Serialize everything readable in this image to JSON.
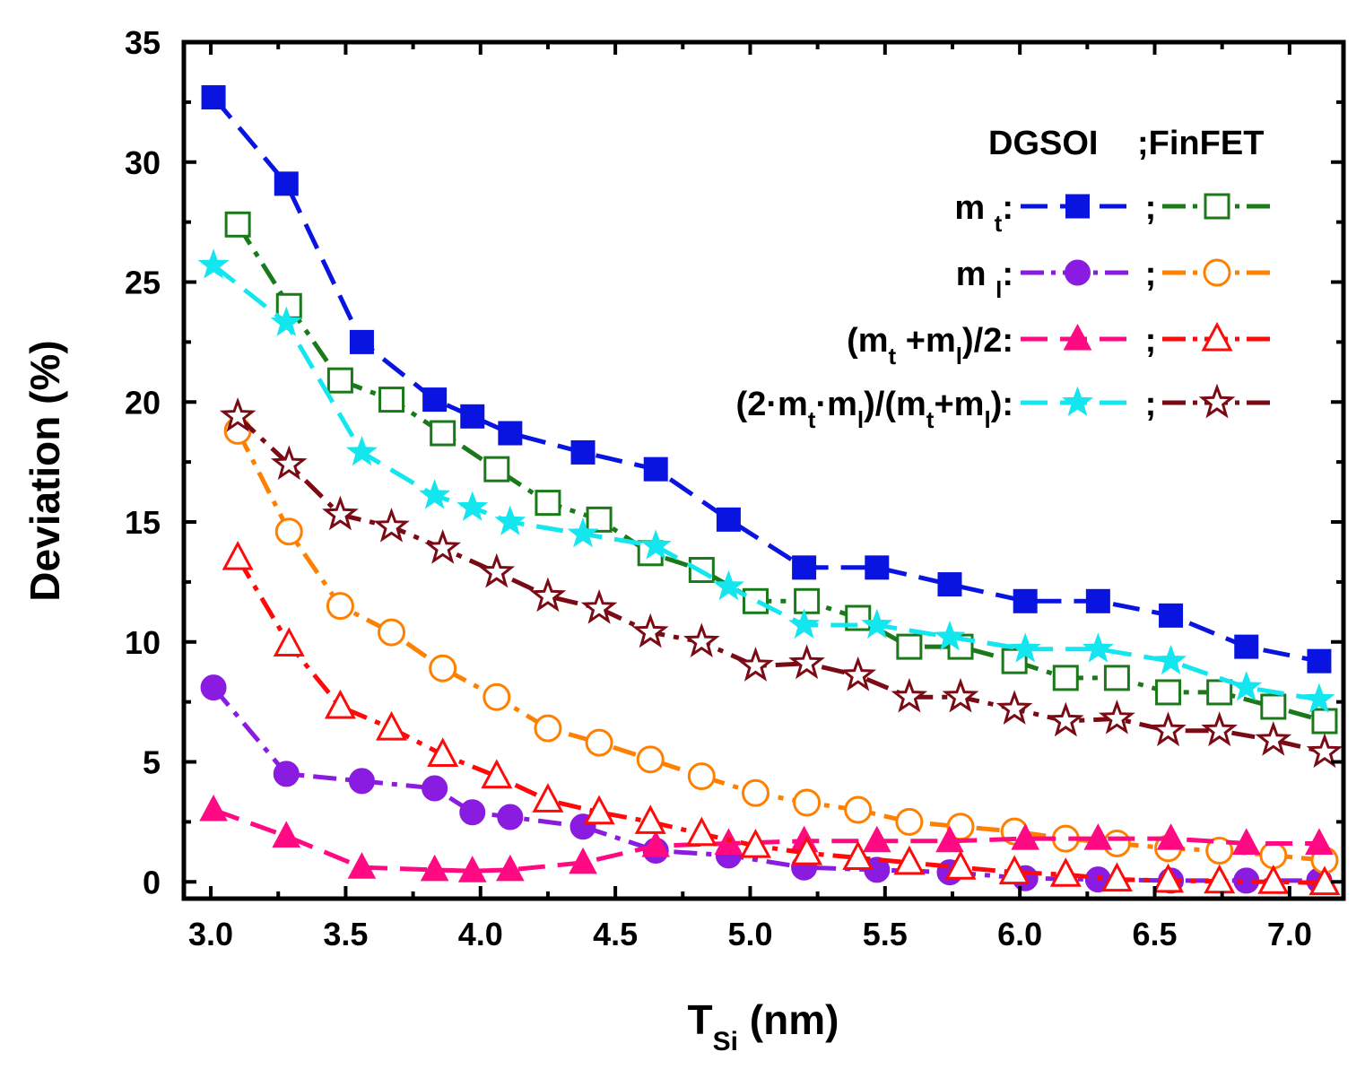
{
  "chart_data": {
    "type": "line",
    "xlabel": "T",
    "xlabel_sub": "Si",
    "xlabel_unit": " (nm)",
    "ylabel": "Deviation (%)",
    "xlim": [
      2.9,
      7.2
    ],
    "ylim": [
      -0.7,
      35
    ],
    "x_ticks": [
      3.0,
      3.5,
      4.0,
      4.5,
      5.0,
      5.5,
      6.0,
      6.5,
      7.0
    ],
    "x_tick_labels": [
      "3.0",
      "3.5",
      "4.0",
      "4.5",
      "5.0",
      "5.5",
      "6.0",
      "6.5",
      "7.0"
    ],
    "y_ticks": [
      0,
      5,
      10,
      15,
      20,
      25,
      30,
      35
    ],
    "y_tick_labels": [
      "0",
      "5",
      "10",
      "15",
      "20",
      "25",
      "30",
      "35"
    ],
    "legend_header": {
      "left": "DGSOI",
      "right": ";FinFET"
    },
    "legend_rows": [
      {
        "label_parts": [
          {
            "t": "m "
          },
          {
            "t": "t",
            "sub": true
          },
          {
            "t": ":"
          }
        ],
        "sep": ";"
      },
      {
        "label_parts": [
          {
            "t": "m "
          },
          {
            "t": "l",
            "sub": true
          },
          {
            "t": ":"
          }
        ],
        "sep": ";"
      },
      {
        "label_parts": [
          {
            "t": "(m"
          },
          {
            "t": "t",
            "sub": true
          },
          {
            "t": " +m"
          },
          {
            "t": "l",
            "sub": true
          },
          {
            "t": ")/2:"
          }
        ],
        "sep": ";"
      },
      {
        "label_parts": [
          {
            "t": "(2·m"
          },
          {
            "t": "t",
            "sub": true
          },
          {
            "t": "·m"
          },
          {
            "t": "l",
            "sub": true
          },
          {
            "t": ")/(m"
          },
          {
            "t": "t",
            "sub": true
          },
          {
            "t": "+m"
          },
          {
            "t": "l",
            "sub": true
          },
          {
            "t": "):"
          }
        ],
        "sep": ";"
      }
    ],
    "series": [
      {
        "name": "DGSOI m_t",
        "color": "#0a14e0",
        "marker": "square",
        "filled": true,
        "dash": "long",
        "legend_row": 0,
        "legend_col": 0,
        "x": [
          3.01,
          3.28,
          3.56,
          3.83,
          3.97,
          4.11,
          4.38,
          4.65,
          4.92,
          5.2,
          5.47,
          5.74,
          6.02,
          6.29,
          6.56,
          6.84,
          7.11
        ],
        "y": [
          32.7,
          29.1,
          22.5,
          20.1,
          19.4,
          18.7,
          17.9,
          17.2,
          15.1,
          13.1,
          13.1,
          12.4,
          11.7,
          11.7,
          11.1,
          9.8,
          9.2
        ]
      },
      {
        "name": "FinFET m_t",
        "color": "#1a7a1a",
        "marker": "square",
        "filled": false,
        "dash": "dashdot",
        "legend_row": 0,
        "legend_col": 1,
        "x": [
          3.1,
          3.29,
          3.48,
          3.67,
          3.86,
          4.06,
          4.25,
          4.44,
          4.63,
          4.82,
          5.02,
          5.21,
          5.4,
          5.59,
          5.78,
          5.98,
          6.17,
          6.36,
          6.55,
          6.74,
          6.94,
          7.13
        ],
        "y": [
          27.4,
          24.0,
          20.9,
          20.1,
          18.7,
          17.2,
          15.8,
          15.1,
          13.7,
          13.0,
          11.7,
          11.7,
          11.0,
          9.8,
          9.8,
          9.2,
          8.5,
          8.5,
          7.9,
          7.9,
          7.3,
          6.7
        ]
      },
      {
        "name": "DGSOI m_l",
        "color": "#8a1be0",
        "marker": "circle",
        "filled": true,
        "dash": "dashdot",
        "legend_row": 1,
        "legend_col": 0,
        "x": [
          3.01,
          3.28,
          3.56,
          3.83,
          3.97,
          4.11,
          4.38,
          4.65,
          4.92,
          5.2,
          5.47,
          5.74,
          6.02,
          6.29,
          6.56,
          6.84,
          7.11
        ],
        "y": [
          8.1,
          4.5,
          4.2,
          3.9,
          2.9,
          2.7,
          2.3,
          1.3,
          1.1,
          0.6,
          0.5,
          0.4,
          0.15,
          0.1,
          0.05,
          0.05,
          0.05
        ]
      },
      {
        "name": "FinFET m_l",
        "color": "#ff8000",
        "marker": "circle",
        "filled": false,
        "dash": "dashdot",
        "legend_row": 1,
        "legend_col": 1,
        "x": [
          3.1,
          3.29,
          3.48,
          3.67,
          3.86,
          4.06,
          4.25,
          4.44,
          4.63,
          4.82,
          5.02,
          5.21,
          5.4,
          5.59,
          5.78,
          5.98,
          6.17,
          6.36,
          6.55,
          6.74,
          6.94,
          7.13
        ],
        "y": [
          18.8,
          14.6,
          11.5,
          10.4,
          8.9,
          7.7,
          6.4,
          5.8,
          5.1,
          4.4,
          3.7,
          3.3,
          3.0,
          2.5,
          2.3,
          2.1,
          1.8,
          1.6,
          1.4,
          1.3,
          1.1,
          0.9
        ]
      },
      {
        "name": "DGSOI (m_t+m_l)/2",
        "color": "#ff0a82",
        "marker": "triangle",
        "filled": true,
        "dash": "long",
        "legend_row": 2,
        "legend_col": 0,
        "x": [
          3.01,
          3.28,
          3.56,
          3.83,
          3.97,
          4.11,
          4.38,
          4.65,
          4.92,
          5.2,
          5.47,
          5.74,
          6.02,
          6.29,
          6.56,
          6.84,
          7.11
        ],
        "y": [
          3.0,
          1.9,
          0.6,
          0.5,
          0.45,
          0.5,
          0.8,
          1.5,
          1.6,
          1.7,
          1.7,
          1.7,
          1.8,
          1.8,
          1.8,
          1.6,
          1.6
        ]
      },
      {
        "name": "FinFET (m_t+m_l)/2",
        "color": "#ff0a0a",
        "marker": "triangle",
        "filled": false,
        "dash": "dashdot",
        "legend_row": 2,
        "legend_col": 1,
        "x": [
          3.1,
          3.29,
          3.48,
          3.67,
          3.86,
          4.06,
          4.25,
          4.44,
          4.63,
          4.82,
          5.02,
          5.21,
          5.4,
          5.59,
          5.78,
          5.98,
          6.17,
          6.36,
          6.55,
          6.74,
          6.94,
          7.13
        ],
        "y": [
          13.5,
          9.9,
          7.3,
          6.4,
          5.3,
          4.4,
          3.4,
          2.9,
          2.5,
          2.0,
          1.5,
          1.2,
          1.0,
          0.8,
          0.6,
          0.4,
          0.3,
          0.1,
          0.05,
          0.02,
          0.0,
          -0.05
        ]
      },
      {
        "name": "DGSOI (2·m_t·m_l)/(m_t+m_l)",
        "color": "#14e6f0",
        "marker": "star",
        "filled": true,
        "dash": "long",
        "legend_row": 3,
        "legend_col": 0,
        "x": [
          3.01,
          3.28,
          3.56,
          3.83,
          3.97,
          4.11,
          4.38,
          4.65,
          4.92,
          5.2,
          5.47,
          5.74,
          6.02,
          6.29,
          6.56,
          6.84,
          7.11
        ],
        "y": [
          25.7,
          23.3,
          17.9,
          16.1,
          15.6,
          15.0,
          14.5,
          14.0,
          12.3,
          10.7,
          10.7,
          10.2,
          9.7,
          9.7,
          9.2,
          8.1,
          7.6
        ]
      },
      {
        "name": "FinFET (2·m_t·m_l)/(m_t+m_l)",
        "color": "#7a0a14",
        "marker": "star",
        "filled": false,
        "dash": "dashdot",
        "legend_row": 3,
        "legend_col": 1,
        "x": [
          3.1,
          3.29,
          3.48,
          3.67,
          3.86,
          4.06,
          4.25,
          4.44,
          4.63,
          4.82,
          5.02,
          5.21,
          5.4,
          5.59,
          5.78,
          5.98,
          6.17,
          6.36,
          6.55,
          6.74,
          6.94,
          7.13
        ],
        "y": [
          19.4,
          17.4,
          15.3,
          14.8,
          13.9,
          12.9,
          11.9,
          11.4,
          10.4,
          10.0,
          9.0,
          9.1,
          8.6,
          7.7,
          7.7,
          7.2,
          6.7,
          6.8,
          6.3,
          6.3,
          5.9,
          5.4
        ]
      }
    ]
  }
}
